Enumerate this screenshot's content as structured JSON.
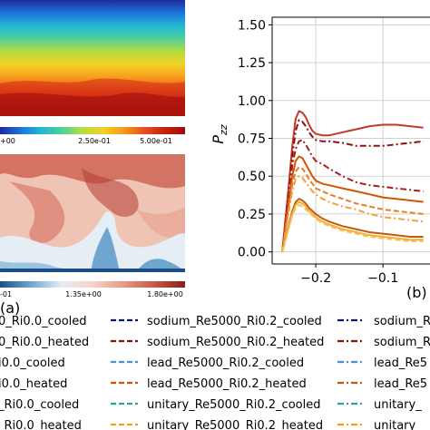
{
  "colors": {
    "field_top_colormap": [
      "#1f2a9c",
      "#1e73d8",
      "#22b8d6",
      "#4fd09a",
      "#b5dd3e",
      "#f2d224",
      "#f79b1e",
      "#e9501a",
      "#c81e12",
      "#9e0b0b"
    ],
    "field_bottom_colormap": [
      "#1c4f8a",
      "#6fa6cf",
      "#e6eef5",
      "#f4d5c7",
      "#e79a85",
      "#c8584a",
      "#8e1a1a"
    ]
  },
  "panel_a": {
    "label": "(a)",
    "top_colorbar_ticks": [
      "+00",
      "2.50e-01",
      "5.00e-01"
    ],
    "bottom_colorbar_ticks": [
      "-01",
      "1.35e+00",
      "1.80e+00"
    ]
  },
  "panel_b": {
    "label": "(b)"
  },
  "chart_data": {
    "type": "line",
    "ylabel": "P_zz",
    "xlim": [
      -0.265,
      -0.03
    ],
    "ylim": [
      -0.08,
      1.55
    ],
    "xticks": [
      {
        "value": -0.2,
        "label": "−0.2"
      },
      {
        "value": -0.1,
        "label": "−0.1"
      }
    ],
    "yticks": [
      {
        "value": 0.0,
        "label": "0.00"
      },
      {
        "value": 0.25,
        "label": "0.25"
      },
      {
        "value": 0.5,
        "label": "0.50"
      },
      {
        "value": 0.75,
        "label": "0.75"
      },
      {
        "value": 1.0,
        "label": "1.00"
      },
      {
        "value": 1.25,
        "label": "1.25"
      },
      {
        "value": 1.5,
        "label": "1.50"
      }
    ],
    "grid": true,
    "series": [
      {
        "style": "solid",
        "color": "#c0392b",
        "x": [
          -0.25,
          -0.24,
          -0.235,
          -0.23,
          -0.225,
          -0.22,
          -0.215,
          -0.21,
          -0.205,
          -0.2,
          -0.19,
          -0.18,
          -0.16,
          -0.14,
          -0.12,
          -0.1,
          -0.08,
          -0.06,
          -0.04
        ],
        "y": [
          0.0,
          0.45,
          0.7,
          0.88,
          0.93,
          0.92,
          0.89,
          0.84,
          0.8,
          0.78,
          0.77,
          0.77,
          0.79,
          0.81,
          0.83,
          0.84,
          0.84,
          0.83,
          0.82
        ]
      },
      {
        "style": "dashdot",
        "color": "#8b1010",
        "x": [
          -0.25,
          -0.24,
          -0.235,
          -0.23,
          -0.225,
          -0.22,
          -0.215,
          -0.21,
          -0.205,
          -0.2,
          -0.19,
          -0.18,
          -0.16,
          -0.14,
          -0.12,
          -0.1,
          -0.08,
          -0.06,
          -0.04
        ],
        "y": [
          0.0,
          0.4,
          0.63,
          0.8,
          0.87,
          0.86,
          0.83,
          0.79,
          0.76,
          0.74,
          0.73,
          0.73,
          0.72,
          0.7,
          0.7,
          0.7,
          0.71,
          0.72,
          0.73
        ]
      },
      {
        "style": "dashdot",
        "color": "#a61e1e",
        "x": [
          -0.25,
          -0.24,
          -0.235,
          -0.23,
          -0.225,
          -0.22,
          -0.215,
          -0.21,
          -0.205,
          -0.2,
          -0.19,
          -0.18,
          -0.16,
          -0.14,
          -0.12,
          -0.1,
          -0.08,
          -0.06,
          -0.04
        ],
        "y": [
          0.0,
          0.38,
          0.57,
          0.68,
          0.73,
          0.74,
          0.71,
          0.67,
          0.63,
          0.6,
          0.58,
          0.55,
          0.5,
          0.46,
          0.44,
          0.43,
          0.42,
          0.41,
          0.4
        ]
      },
      {
        "style": "solid",
        "color": "#d35400",
        "x": [
          -0.25,
          -0.24,
          -0.235,
          -0.23,
          -0.225,
          -0.22,
          -0.215,
          -0.21,
          -0.205,
          -0.2,
          -0.19,
          -0.18,
          -0.16,
          -0.14,
          -0.12,
          -0.1,
          -0.08,
          -0.06,
          -0.04
        ],
        "y": [
          0.0,
          0.33,
          0.5,
          0.6,
          0.63,
          0.62,
          0.58,
          0.54,
          0.5,
          0.47,
          0.45,
          0.44,
          0.42,
          0.4,
          0.38,
          0.36,
          0.35,
          0.34,
          0.33
        ]
      },
      {
        "style": "dashed",
        "color": "#e67e22",
        "x": [
          -0.25,
          -0.24,
          -0.235,
          -0.23,
          -0.225,
          -0.22,
          -0.215,
          -0.21,
          -0.205,
          -0.2,
          -0.19,
          -0.18,
          -0.16,
          -0.14,
          -0.12,
          -0.1,
          -0.08,
          -0.06,
          -0.04
        ],
        "y": [
          0.0,
          0.3,
          0.45,
          0.53,
          0.56,
          0.55,
          0.52,
          0.48,
          0.45,
          0.42,
          0.4,
          0.38,
          0.35,
          0.32,
          0.3,
          0.28,
          0.27,
          0.26,
          0.25
        ]
      },
      {
        "style": "dashdot",
        "color": "#f0a040",
        "x": [
          -0.25,
          -0.24,
          -0.235,
          -0.23,
          -0.225,
          -0.22,
          -0.215,
          -0.21,
          -0.205,
          -0.2,
          -0.19,
          -0.18,
          -0.16,
          -0.14,
          -0.12,
          -0.1,
          -0.08,
          -0.06,
          -0.04
        ],
        "y": [
          0.0,
          0.27,
          0.4,
          0.48,
          0.5,
          0.49,
          0.46,
          0.43,
          0.4,
          0.38,
          0.35,
          0.33,
          0.3,
          0.28,
          0.25,
          0.23,
          0.22,
          0.21,
          0.2
        ]
      },
      {
        "style": "solid",
        "color": "#c45a12",
        "x": [
          -0.25,
          -0.24,
          -0.235,
          -0.23,
          -0.225,
          -0.22,
          -0.215,
          -0.21,
          -0.205,
          -0.2,
          -0.19,
          -0.18,
          -0.16,
          -0.14,
          -0.12,
          -0.1,
          -0.08,
          -0.06,
          -0.04
        ],
        "y": [
          0.0,
          0.18,
          0.27,
          0.33,
          0.35,
          0.34,
          0.32,
          0.29,
          0.27,
          0.25,
          0.22,
          0.2,
          0.17,
          0.15,
          0.13,
          0.12,
          0.11,
          0.1,
          0.1
        ]
      },
      {
        "style": "solid",
        "color": "#f0b030",
        "x": [
          -0.25,
          -0.24,
          -0.235,
          -0.23,
          -0.225,
          -0.22,
          -0.215,
          -0.21,
          -0.205,
          -0.2,
          -0.19,
          -0.18,
          -0.16,
          -0.14,
          -0.12,
          -0.1,
          -0.08,
          -0.06,
          -0.04
        ],
        "y": [
          0.0,
          0.17,
          0.25,
          0.31,
          0.33,
          0.32,
          0.3,
          0.27,
          0.25,
          0.23,
          0.2,
          0.18,
          0.15,
          0.13,
          0.11,
          0.1,
          0.09,
          0.08,
          0.08
        ]
      },
      {
        "style": "dashed",
        "color": "#f5c060",
        "x": [
          -0.25,
          -0.24,
          -0.235,
          -0.23,
          -0.225,
          -0.22,
          -0.215,
          -0.21,
          -0.205,
          -0.2,
          -0.19,
          -0.18,
          -0.16,
          -0.14,
          -0.12,
          -0.1,
          -0.08,
          -0.06,
          -0.04
        ],
        "y": [
          0.0,
          0.16,
          0.24,
          0.29,
          0.31,
          0.3,
          0.28,
          0.26,
          0.24,
          0.22,
          0.19,
          0.17,
          0.14,
          0.12,
          0.1,
          0.09,
          0.08,
          0.07,
          0.07
        ]
      }
    ]
  },
  "legend": {
    "columns": [
      [
        {
          "label": "0_Ri0.0_cooled",
          "color": "#0a1a6b",
          "style": "solid"
        },
        {
          "label": "0_Ri0.0_heated",
          "color": "#7a0c0c",
          "style": "solid"
        },
        {
          "label": "i0.0_cooled",
          "color": "#4a90d9",
          "style": "solid"
        },
        {
          "label": "i0.0_heated",
          "color": "#d35400",
          "style": "solid"
        },
        {
          "label": "_Ri0.0_cooled",
          "color": "#2aa39a",
          "style": "solid"
        },
        {
          "label": "_Ri0.0_heated",
          "color": "#f0a020",
          "style": "solid"
        }
      ],
      [
        {
          "label": "sodium_Re5000_Ri0.2_cooled",
          "color": "#0a1a6b",
          "style": "dashed"
        },
        {
          "label": "sodium_Re5000_Ri0.2_heated",
          "color": "#8b1010",
          "style": "dashed"
        },
        {
          "label": "lead_Re5000_Ri0.2_cooled",
          "color": "#4a90d9",
          "style": "dashed"
        },
        {
          "label": "lead_Re5000_Ri0.2_heated",
          "color": "#d35400",
          "style": "dashed"
        },
        {
          "label": "unitary_Re5000_Ri0.2_cooled",
          "color": "#2aa39a",
          "style": "dashed"
        },
        {
          "label": "unitary_Re5000_Ri0.2_heated",
          "color": "#f0a020",
          "style": "dashed"
        }
      ],
      [
        {
          "label": "sodium_Re",
          "color": "#0a1a6b",
          "style": "dashdot"
        },
        {
          "label": "sodium_Re",
          "color": "#8b1010",
          "style": "dashdot"
        },
        {
          "label": "lead_Re5",
          "color": "#4a90d9",
          "style": "dashdot"
        },
        {
          "label": "lead_Re5",
          "color": "#d35400",
          "style": "dashdot"
        },
        {
          "label": "unitary_",
          "color": "#2aa39a",
          "style": "dashdot"
        },
        {
          "label": "unitary_",
          "color": "#f0a020",
          "style": "dashdot"
        }
      ]
    ]
  }
}
